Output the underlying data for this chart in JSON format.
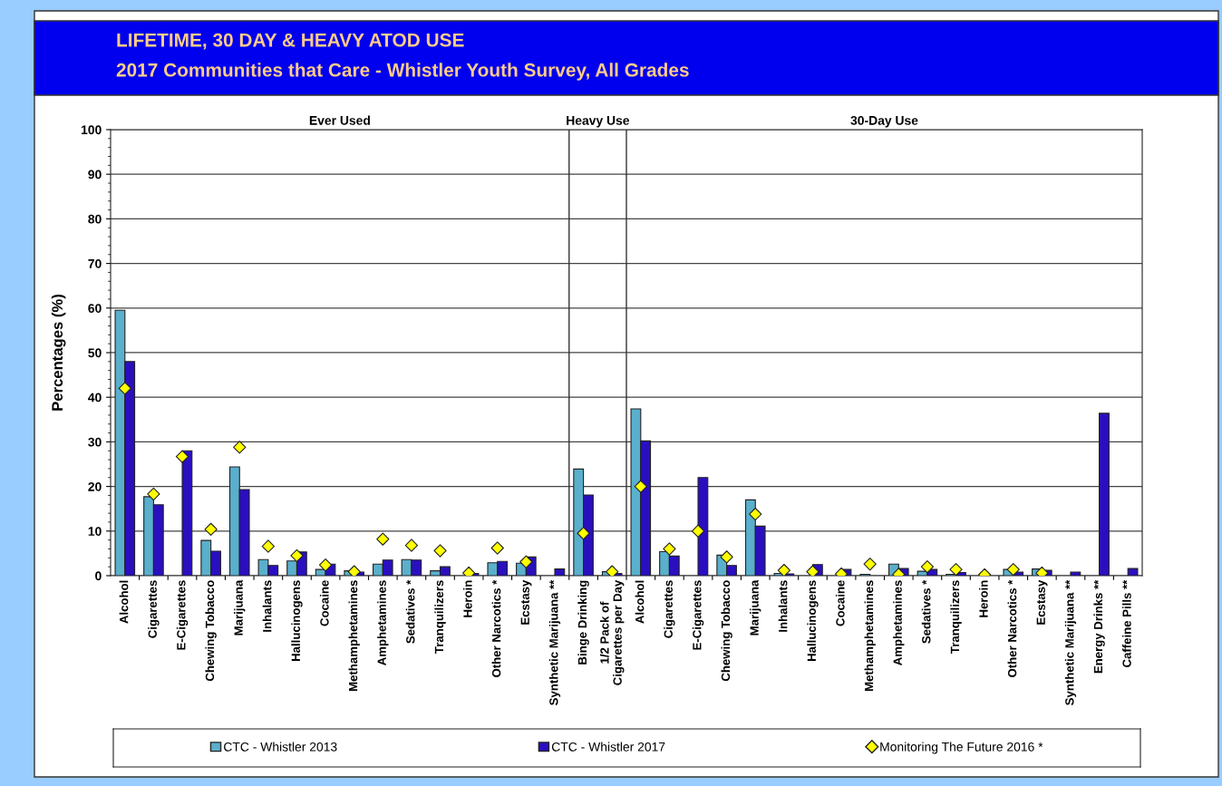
{
  "chart_data": {
    "type": "bar",
    "title": "LIFETIME, 30 DAY & HEAVY ATOD USE",
    "subtitle": "2017 Communities that Care - Whistler Youth Survey, All Grades",
    "ylabel": "Percentages (%)",
    "categories": [
      "Alcohol",
      "Cigarettes",
      "E-Cigarettes",
      "Chewing Tobacco",
      "Marijuana",
      "Inhalants",
      "Hallucinogens",
      "Cocaine",
      "Methamphetamines",
      "Amphetamines",
      "Sedatives *",
      "Tranquilizers",
      "Heroin",
      "Other Narcotics *",
      "Ecstasy",
      "Synthetic Marijuana **",
      "Binge Drinking",
      "1/2 Pack of\nCigarettes per Day",
      "Alcohol",
      "Cigarettes",
      "E-Cigarettes",
      "Chewing Tobacco",
      "Marijuana",
      "Inhalants",
      "Hallucinogens",
      "Cocaine",
      "Methamphetamines",
      "Amphetamines",
      "Sedatives *",
      "Tranquilizers",
      "Heroin",
      "Other Narcotics *",
      "Ecstasy",
      "Synthetic Marijuana **",
      "Energy Drinks **",
      "Caffeine Pills **"
    ],
    "series": [
      {
        "name": "CTC - Whistler 2013",
        "color": "#5aafcc",
        "values": [
          59.5,
          17.7,
          null,
          7.9,
          24.4,
          3.6,
          3.3,
          1.4,
          1.1,
          2.6,
          3.6,
          1.1,
          null,
          2.9,
          2.8,
          null,
          23.9,
          0.9,
          37.4,
          5.4,
          null,
          4.6,
          17.0,
          0.5,
          null,
          null,
          0.3,
          2.6,
          1.0,
          0.3,
          null,
          1.4,
          1.5,
          null,
          null,
          null
        ]
      },
      {
        "name": "CTC - Whistler 2017",
        "color": "#2a0fc0",
        "values": [
          48.0,
          15.9,
          28.0,
          5.5,
          19.3,
          2.3,
          5.3,
          2.6,
          0.8,
          3.5,
          3.5,
          2.0,
          0.5,
          3.2,
          4.2,
          1.5,
          18.1,
          0.5,
          30.2,
          4.4,
          22.0,
          2.3,
          11.1,
          0.4,
          2.5,
          1.4,
          null,
          1.6,
          1.4,
          0.7,
          null,
          0.8,
          1.2,
          0.8,
          36.4,
          1.6
        ]
      },
      {
        "name": "Monitoring The Future 2016 *",
        "type": "scatter",
        "color": "#ffff00",
        "marker": "diamond",
        "values": [
          42.0,
          18.3,
          26.7,
          10.4,
          28.8,
          6.6,
          4.5,
          2.4,
          0.9,
          8.2,
          6.8,
          5.6,
          0.6,
          6.2,
          3.1,
          null,
          9.5,
          0.9,
          20.0,
          6.0,
          10.0,
          4.2,
          13.8,
          1.2,
          0.9,
          0.4,
          2.6,
          0.3,
          2.0,
          1.4,
          0.2,
          1.4,
          0.6,
          null,
          null,
          null
        ]
      }
    ],
    "annotations": [
      "Ever Used",
      "Heavy Use",
      "30-Day Use"
    ],
    "ylim": [
      0,
      100
    ],
    "yticks": [
      0,
      10,
      20,
      30,
      40,
      50,
      60,
      70,
      80,
      90,
      100
    ],
    "grid": "y",
    "legend": "bottom"
  }
}
